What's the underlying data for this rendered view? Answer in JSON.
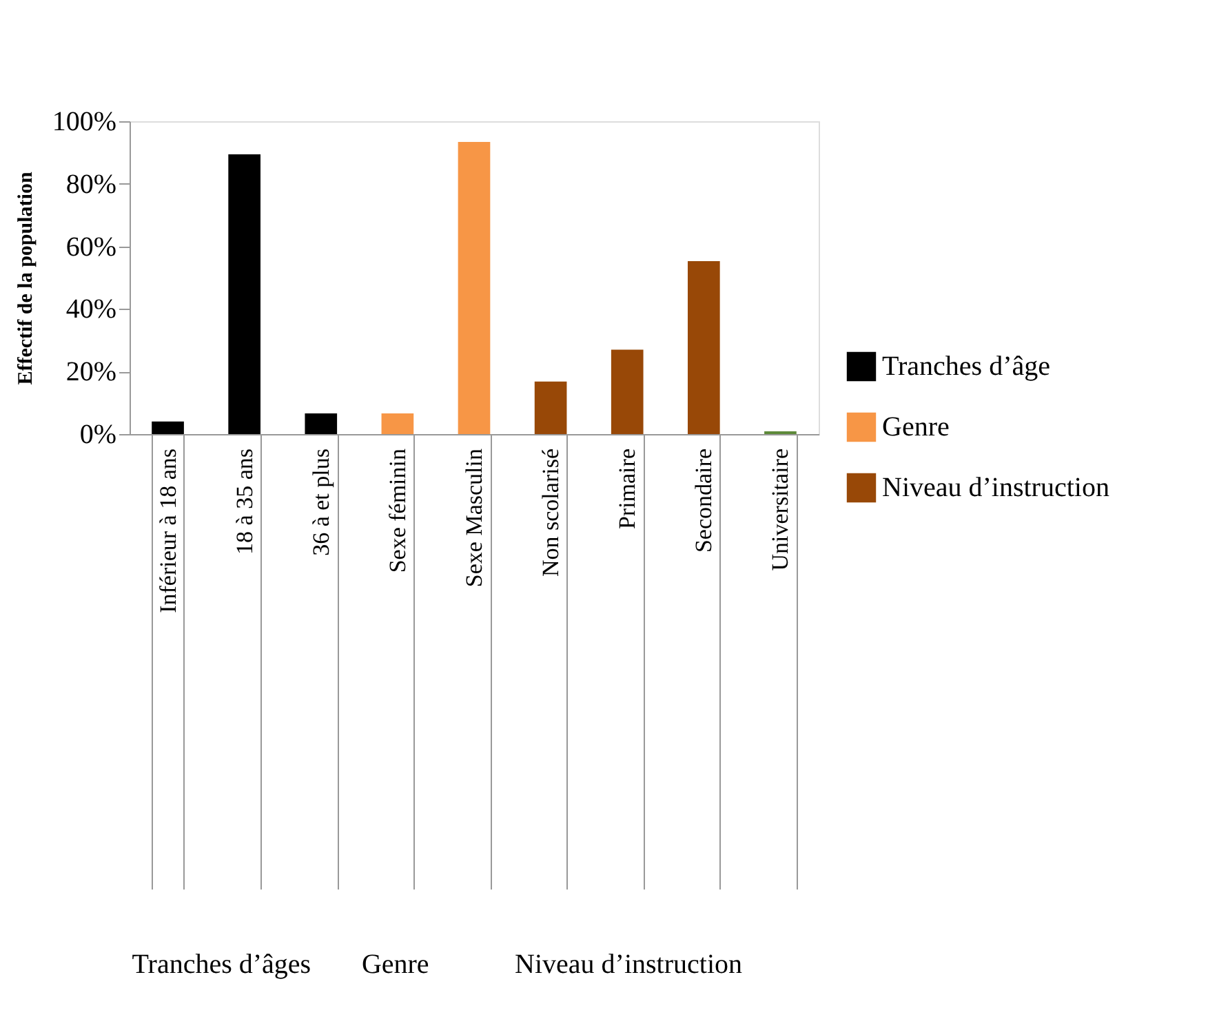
{
  "chart_data": {
    "type": "bar",
    "ylabel": "Effectif de la population",
    "categories": [
      "Inférieur à 18 ans",
      "18 à 35 ans",
      "36 à et plus",
      "Sexe féminin",
      "Sexe Masculin",
      "Non scolarisé",
      "Primaire",
      "Secondaire",
      "Universitaire"
    ],
    "series": [
      {
        "name": "Tranches d’âge",
        "color": "#000000",
        "values": [
          4.0,
          89.4,
          6.6,
          null,
          null,
          null,
          null,
          null,
          null
        ]
      },
      {
        "name": "Genre",
        "color": "#f79646",
        "values": [
          null,
          null,
          null,
          6.6,
          93.4,
          null,
          null,
          null,
          null
        ]
      },
      {
        "name": "Niveau d’instruction",
        "color": "#984807",
        "colors": [
          null,
          null,
          null,
          null,
          null,
          "#984807",
          "#984807",
          "#984807",
          "#5e8a3a"
        ],
        "values": [
          null,
          null,
          null,
          null,
          null,
          16.8,
          27.0,
          55.3,
          0.9
        ]
      }
    ],
    "ylim": [
      0,
      100
    ],
    "yticks": [
      {
        "value": 0,
        "label": "0%"
      },
      {
        "value": 20,
        "label": "20%"
      },
      {
        "value": 40,
        "label": "40%"
      },
      {
        "value": 60,
        "label": "60%"
      },
      {
        "value": 80,
        "label": "80%"
      },
      {
        "value": 100,
        "label": "100%"
      }
    ],
    "annotations": [
      "Tranches d’âges",
      "Genre",
      "Niveau d’instruction"
    ],
    "grid": false,
    "legend": "right"
  }
}
